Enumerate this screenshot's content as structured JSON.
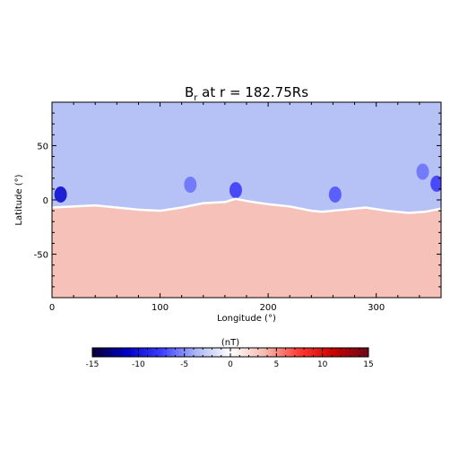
{
  "chart_data": {
    "type": "heatmap",
    "title": {
      "base": "B",
      "sub": "r",
      "rest": " at r = 182.75Rs"
    },
    "xlabel": "Longitude (°)",
    "ylabel": "Latitude (°)",
    "xlim": [
      0,
      360
    ],
    "ylim": [
      -90,
      90
    ],
    "x_ticks": [
      0,
      100,
      200,
      300
    ],
    "y_ticks": [
      -50,
      0,
      50
    ],
    "colorbar": {
      "label": "(nT)",
      "range": [
        -15,
        15
      ],
      "ticks": [
        -15,
        -10,
        -5,
        0,
        5,
        10,
        15
      ],
      "colormap": [
        "#0b0033",
        "#0000c8",
        "#3d3dff",
        "#a9b7f5",
        "#ffffff",
        "#f5b9ae",
        "#ff3a33",
        "#c80000",
        "#6b0a1a"
      ]
    },
    "field": {
      "north_value": -3.2,
      "south_value": 3.3,
      "current_sheet_latitude": [
        [
          0,
          -7
        ],
        [
          20,
          -6
        ],
        [
          40,
          -5
        ],
        [
          60,
          -7
        ],
        [
          80,
          -9
        ],
        [
          100,
          -10
        ],
        [
          120,
          -7
        ],
        [
          140,
          -3
        ],
        [
          160,
          -2
        ],
        [
          170,
          1
        ],
        [
          180,
          -1
        ],
        [
          200,
          -4
        ],
        [
          220,
          -6
        ],
        [
          240,
          -10
        ],
        [
          250,
          -11
        ],
        [
          270,
          -9
        ],
        [
          290,
          -7
        ],
        [
          310,
          -10
        ],
        [
          330,
          -12
        ],
        [
          345,
          -11
        ],
        [
          360,
          -8
        ]
      ],
      "features": [
        {
          "lon": 8,
          "lat": 5,
          "value": -11
        },
        {
          "lon": 128,
          "lat": 14,
          "value": -6
        },
        {
          "lon": 170,
          "lat": 9,
          "value": -8
        },
        {
          "lon": 262,
          "lat": 5,
          "value": -7
        },
        {
          "lon": 343,
          "lat": 26,
          "value": -6
        },
        {
          "lon": 356,
          "lat": 15,
          "value": -8
        }
      ]
    }
  }
}
